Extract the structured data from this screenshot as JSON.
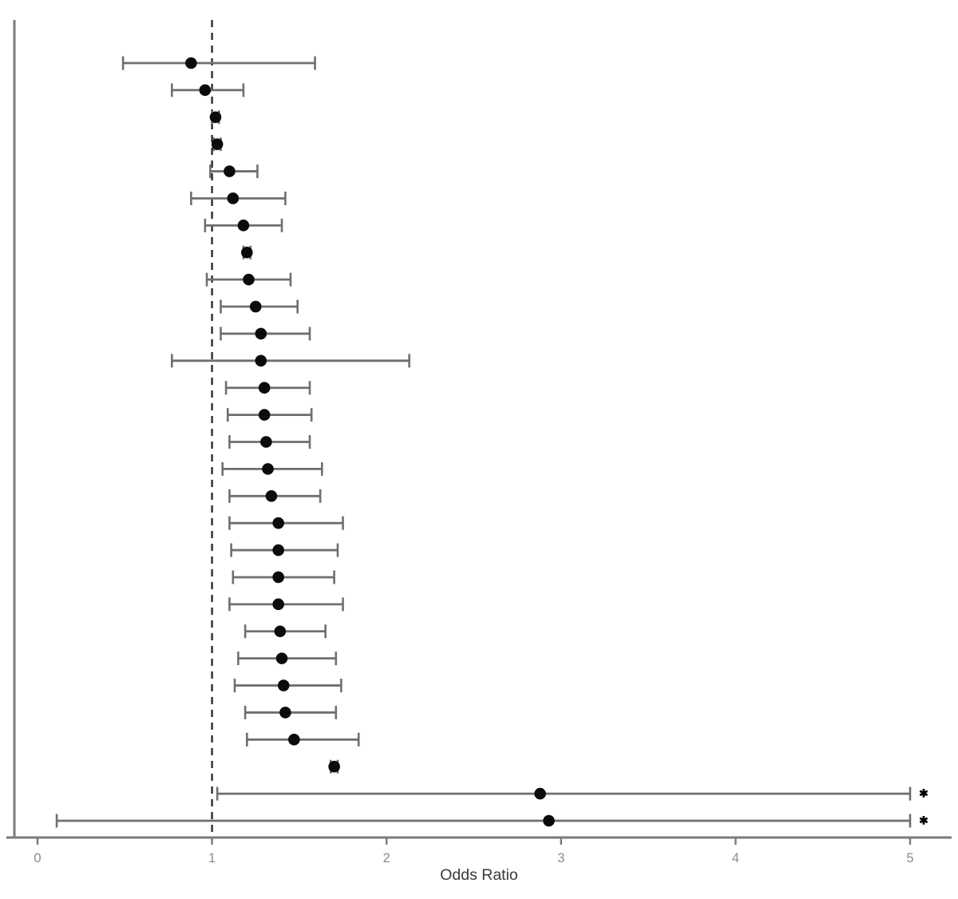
{
  "figure": {
    "xlabel": "Odds Ratio",
    "truncation_marker": "✱"
  },
  "colors": {
    "background": "#ffffff",
    "errorbar": "#6f6f6f",
    "point": "#0b0b0d",
    "axis": "#7a7a7a",
    "tick_label": "#8c8c8c",
    "xlabel": "#3a3a3e",
    "reference_line": "#2e2e2e",
    "asterisk": "#000000"
  },
  "chart_data": {
    "type": "scatter",
    "subtype": "forest-plot",
    "title": "",
    "xlabel": "Odds Ratio",
    "ylabel": "",
    "x_ticks": [
      0,
      1,
      2,
      3,
      4,
      5
    ],
    "xlim": [
      -0.18,
      5.28
    ],
    "reference_line_x": 1,
    "grid": false,
    "legend_position": "none",
    "note": "rows listed top to bottom; trunc=true rows have upper CI cut off at 5 and flagged with an asterisk",
    "rows": [
      {
        "or": 0.88,
        "lo": 0.49,
        "hi": 1.59,
        "trunc": false
      },
      {
        "or": 0.96,
        "lo": 0.77,
        "hi": 1.18,
        "trunc": false
      },
      {
        "or": 1.02,
        "lo": 1.0,
        "hi": 1.04,
        "trunc": false
      },
      {
        "or": 1.03,
        "lo": 1.01,
        "hi": 1.05,
        "trunc": false
      },
      {
        "or": 1.1,
        "lo": 0.99,
        "hi": 1.26,
        "trunc": false
      },
      {
        "or": 1.12,
        "lo": 0.88,
        "hi": 1.42,
        "trunc": false
      },
      {
        "or": 1.18,
        "lo": 0.96,
        "hi": 1.4,
        "trunc": false
      },
      {
        "or": 1.2,
        "lo": 1.18,
        "hi": 1.22,
        "trunc": false
      },
      {
        "or": 1.21,
        "lo": 0.97,
        "hi": 1.45,
        "trunc": false
      },
      {
        "or": 1.25,
        "lo": 1.05,
        "hi": 1.49,
        "trunc": false
      },
      {
        "or": 1.28,
        "lo": 1.05,
        "hi": 1.56,
        "trunc": false
      },
      {
        "or": 1.28,
        "lo": 0.77,
        "hi": 2.13,
        "trunc": false
      },
      {
        "or": 1.3,
        "lo": 1.08,
        "hi": 1.56,
        "trunc": false
      },
      {
        "or": 1.3,
        "lo": 1.09,
        "hi": 1.57,
        "trunc": false
      },
      {
        "or": 1.31,
        "lo": 1.1,
        "hi": 1.56,
        "trunc": false
      },
      {
        "or": 1.32,
        "lo": 1.06,
        "hi": 1.63,
        "trunc": false
      },
      {
        "or": 1.34,
        "lo": 1.1,
        "hi": 1.62,
        "trunc": false
      },
      {
        "or": 1.38,
        "lo": 1.1,
        "hi": 1.75,
        "trunc": false
      },
      {
        "or": 1.38,
        "lo": 1.11,
        "hi": 1.72,
        "trunc": false
      },
      {
        "or": 1.38,
        "lo": 1.12,
        "hi": 1.7,
        "trunc": false
      },
      {
        "or": 1.38,
        "lo": 1.1,
        "hi": 1.75,
        "trunc": false
      },
      {
        "or": 1.39,
        "lo": 1.19,
        "hi": 1.65,
        "trunc": false
      },
      {
        "or": 1.4,
        "lo": 1.15,
        "hi": 1.71,
        "trunc": false
      },
      {
        "or": 1.41,
        "lo": 1.13,
        "hi": 1.74,
        "trunc": false
      },
      {
        "or": 1.42,
        "lo": 1.19,
        "hi": 1.71,
        "trunc": false
      },
      {
        "or": 1.47,
        "lo": 1.2,
        "hi": 1.84,
        "trunc": false
      },
      {
        "or": 1.7,
        "lo": 1.68,
        "hi": 1.72,
        "trunc": false
      },
      {
        "or": 2.88,
        "lo": 1.03,
        "hi": 5.0,
        "trunc": true
      },
      {
        "or": 2.93,
        "lo": 0.11,
        "hi": 5.0,
        "trunc": true
      }
    ]
  }
}
